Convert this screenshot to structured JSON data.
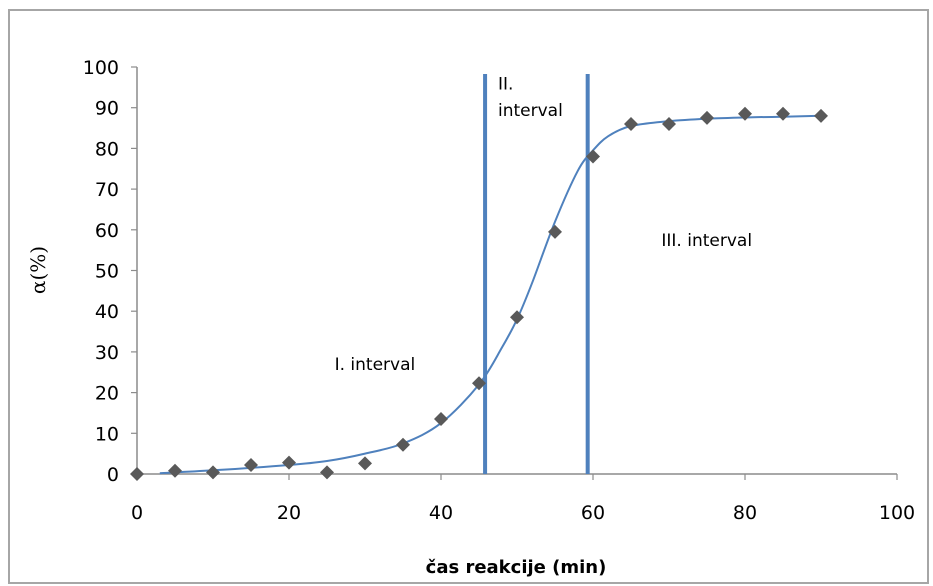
{
  "chart_data": {
    "type": "scatter",
    "title": "",
    "xlabel": "čas reakcije (min)",
    "ylabel": "α(%)",
    "xlim": [
      0,
      100
    ],
    "ylim": [
      0,
      100
    ],
    "x_ticks": [
      0,
      20,
      40,
      60,
      80,
      100
    ],
    "y_ticks": [
      0,
      10,
      20,
      30,
      40,
      50,
      60,
      70,
      80,
      90,
      100
    ],
    "grid": false,
    "legend": "none",
    "series": [
      {
        "marker": "diamond",
        "x": [
          0,
          5,
          10,
          15,
          20,
          25,
          30,
          35,
          40,
          45,
          50,
          55,
          60,
          65,
          70,
          75,
          80,
          85,
          90
        ],
        "y": [
          0,
          0.8,
          0.4,
          2.2,
          2.8,
          0.4,
          2.6,
          7.2,
          13.5,
          22.3,
          38.5,
          59.5,
          78,
          86,
          86,
          87.5,
          88.5,
          88.5,
          88
        ],
        "color": "#595959"
      }
    ],
    "fit_curve": {
      "x": [
        3,
        10,
        20,
        25,
        30,
        35,
        40,
        45,
        48,
        50,
        52,
        55,
        58,
        60,
        62,
        65,
        70,
        75,
        80,
        85,
        90
      ],
      "y": [
        0.2,
        0.9,
        2.2,
        3.2,
        5,
        7.5,
        12.5,
        22,
        31,
        38,
        47,
        62,
        74.5,
        79.5,
        83,
        85.5,
        86.7,
        87.3,
        87.6,
        87.8,
        88
      ],
      "color": "#4f81bd"
    },
    "vertical_lines": [
      {
        "x": 45.8,
        "color": "#4f81bd"
      },
      {
        "x": 59.3,
        "color": "#4f81bd"
      }
    ],
    "annotations": [
      {
        "text": "I. interval",
        "x": 26,
        "y": 25.5
      },
      {
        "text": "II.",
        "x": 47.5,
        "y": 94.5
      },
      {
        "text": "interval",
        "x": 47.5,
        "y": 88
      },
      {
        "text": "III. interval",
        "x": 69,
        "y": 56
      }
    ],
    "colors": {
      "axis": "#8c8c8c",
      "marker": "#595959",
      "curve": "#4f81bd",
      "frame": "#a6a6a6"
    }
  }
}
